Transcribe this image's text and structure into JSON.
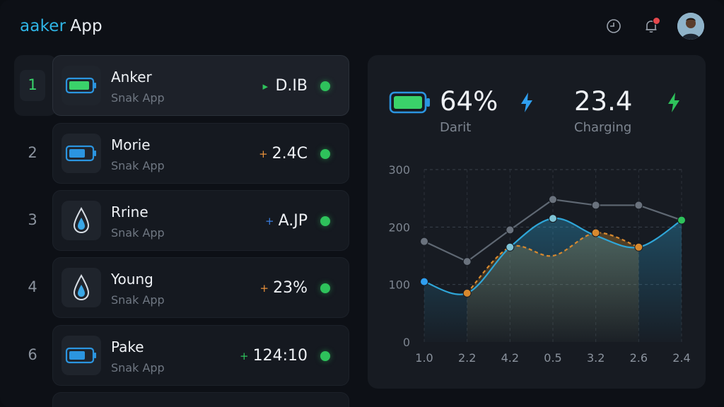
{
  "header": {
    "brand": "aaker",
    "app": "App",
    "icons": [
      "clock-icon",
      "bell-icon"
    ],
    "notification_badge": "1"
  },
  "list": {
    "items": [
      {
        "rank": "1",
        "name": "Anker",
        "sub": "Snak App",
        "value": " D.IB",
        "arrow": "▸",
        "arrow_color": "#2ec25b",
        "icon": "battery-icon",
        "icon_color": "#3ad26a",
        "selected": true
      },
      {
        "rank": "2",
        "name": "Morie",
        "sub": "Snak App",
        "value": "2.4C",
        "arrow": "+",
        "arrow_color": "#e9913a",
        "icon": "battery-icon",
        "icon_color": "#2b95e0",
        "selected": false
      },
      {
        "rank": "3",
        "name": "Rrine",
        "sub": "Snak App",
        "value": "A.JP",
        "arrow": "+",
        "arrow_color": "#3b7fe0",
        "icon": "water-drop-icon",
        "icon_color": "#3aa7e6",
        "selected": false
      },
      {
        "rank": "4",
        "name": "Young",
        "sub": "Snak App",
        "value": "23%",
        "arrow": "+",
        "arrow_color": "#e9913a",
        "icon": "water-drop-icon",
        "icon_color": "#3aa7e6",
        "selected": false
      },
      {
        "rank": "6",
        "name": "Pake",
        "sub": "Snak App",
        "value": "124:10",
        "arrow": "+",
        "arrow_color": "#2ec25b",
        "icon": "battery-icon",
        "icon_color": "#2b95e0",
        "selected": false
      }
    ]
  },
  "stats": {
    "battery_percent": "64%",
    "battery_label": "Darit",
    "charge_value": "23.4",
    "charge_label": "Charging",
    "colors": {
      "battery": "#3ad26a",
      "bolt_blue": "#2f9ff0",
      "bolt_green": "#2ec25b"
    }
  },
  "chart_data": {
    "type": "line",
    "categories": [
      "1.0",
      "2.2",
      "4.2",
      "0.5",
      "3.2",
      "2.6",
      "2.4"
    ],
    "y_ticks": [
      "300",
      "200",
      "100",
      "0"
    ],
    "ylim": [
      0,
      300
    ],
    "grid": true,
    "series": [
      {
        "color": "#5f6873",
        "values": [
          175,
          140,
          195,
          248,
          238,
          238,
          212
        ]
      },
      {
        "color": "#d8892e",
        "values": [
          null,
          85,
          165,
          150,
          190,
          165,
          null
        ],
        "dashed": true
      },
      {
        "color": "#2fa6d8",
        "values": [
          105,
          85,
          165,
          215,
          185,
          165,
          212
        ],
        "filled": true
      }
    ]
  }
}
